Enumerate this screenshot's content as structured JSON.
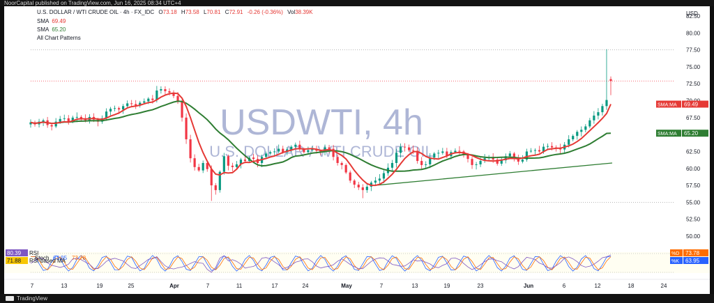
{
  "header": {
    "published_text": "NoorCapital published on TradingView.com, Jun 16, 2025 08:34 UTC+4"
  },
  "footer": {
    "brand": "TradingView"
  },
  "legend": {
    "symbol": "U.S. DOLLAR / WTI CRUDE OIL · 4h · FX_IDC",
    "open_label": "O",
    "open": "73.18",
    "high_label": "H",
    "high": "73.58",
    "low_label": "L",
    "low": "70.81",
    "close_label": "C",
    "close": "72.91",
    "change": "-0.26 (-0.36%)",
    "vol_label": "Vol",
    "vol": "38.39K",
    "sma1_label": "SMA",
    "sma1_value": "69.49",
    "sma2_label": "SMA",
    "sma2_value": "65.20",
    "patterns": "All Chart Patterns"
  },
  "watermark": {
    "ticker": "USDWTI, 4h",
    "name": "U.S. DOLLAR / WTI CRUDE OIL"
  },
  "colors": {
    "up": "#089981",
    "down": "#f23645",
    "sma_fast": "#e53935",
    "sma_slow": "#2e7d32",
    "trend": "#2e7d32",
    "price_line": "#f23645",
    "watermark": "#9aa4cc",
    "rsi": "#7e57c2",
    "stoch_k": "#2962ff",
    "stoch_d": "#ff6d00",
    "rsi_ma": "#f7c600"
  },
  "indicator_labels": {
    "rsi_value": "80.39",
    "rsi_label": "RSI",
    "stoch_label": "Stoch",
    "stoch_value": "63.95",
    "stoch_d_value": "73.78",
    "rsi_ma_value": "71.88",
    "rsi_ma_label": "RSI-based MA",
    "d_badge_label": "%D",
    "d_badge_value": "73.78",
    "k_badge_label": "%K",
    "k_badge_value": "63.95"
  },
  "chart_data": {
    "type": "candlestick",
    "currency": "USD",
    "y_ticks": [
      "82.50",
      "80.00",
      "77.50",
      "75.00",
      "72.50",
      "70.00",
      "67.50",
      "65.00",
      "62.50",
      "60.00",
      "57.50",
      "55.00",
      "52.50",
      "50.00"
    ],
    "ylim": [
      50.0,
      82.5
    ],
    "x_ticks": [
      "7",
      "13",
      "19",
      "25",
      "Apr",
      "7",
      "11",
      "17",
      "24",
      "May",
      "7",
      "13",
      "19",
      "23",
      "Jun",
      "6",
      "12",
      "18",
      "24"
    ],
    "sma_labels": [
      {
        "label": "SMA:MA",
        "value": "69.49"
      },
      {
        "label": "SMA:MA",
        "value": "65.20"
      }
    ],
    "close_series": [
      66.8,
      66.5,
      66.9,
      67.1,
      66.4,
      66.2,
      66.9,
      67.3,
      67.4,
      66.9,
      67.5,
      67.6,
      67.3,
      67.1,
      67.6,
      67.2,
      66.9,
      67.4,
      68.4,
      68.8,
      68.9,
      68.7,
      69.2,
      69.6,
      69.5,
      69.3,
      69.7,
      69.9,
      70.3,
      70.1,
      71.5,
      71.7,
      71.4,
      71.2,
      70.7,
      69.8,
      67.5,
      64.3,
      61.5,
      60.2,
      59.7,
      60.8,
      59.9,
      57.5,
      56.8,
      59.5,
      61.8,
      60.4,
      60.2,
      60.6,
      61.3,
      61.1,
      61.6,
      61.4,
      60.8,
      61.7,
      62.2,
      62.4,
      62.5,
      62.9,
      62.4,
      62.8,
      63.2,
      63.5,
      62.8,
      62.4,
      62.7,
      62.9,
      62.6,
      62.5,
      63.1,
      62.9,
      61.7,
      60.8,
      60.5,
      59.4,
      58.2,
      57.6,
      57.2,
      56.8,
      57.3,
      57.9,
      58.2,
      58.5,
      59.3,
      60.1,
      60.8,
      62.3,
      63.2,
      63.1,
      62.7,
      62.6,
      61.1,
      60.5,
      60.6,
      61.6,
      62.2,
      62.3,
      62.5,
      61.8,
      62.4,
      62.6,
      62.5,
      62.0,
      61.4,
      60.5,
      60.6,
      61.1,
      61.5,
      61.6,
      61.3,
      60.7,
      61.2,
      61.8,
      62.2,
      61.6,
      61.0,
      61.3,
      62.5,
      62.6,
      62.7,
      62.5,
      63.2,
      63.3,
      63.1,
      63.0,
      62.8,
      63.5,
      64.3,
      64.8,
      65.4,
      65.7,
      66.2,
      67.1,
      67.8,
      68.3,
      69.2,
      70.1,
      72.9
    ],
    "last_bar": {
      "open": 73.18,
      "high": 73.58,
      "low": 70.81,
      "close": 72.91
    },
    "sma_fast_last": 69.49,
    "sma_slow_last": 65.2,
    "trendline": {
      "start_price": 57.5,
      "end_price": 60.8
    },
    "price_line": 72.91,
    "dotted_level": 77.5,
    "rsi_ylim": [
      0,
      100
    ]
  }
}
